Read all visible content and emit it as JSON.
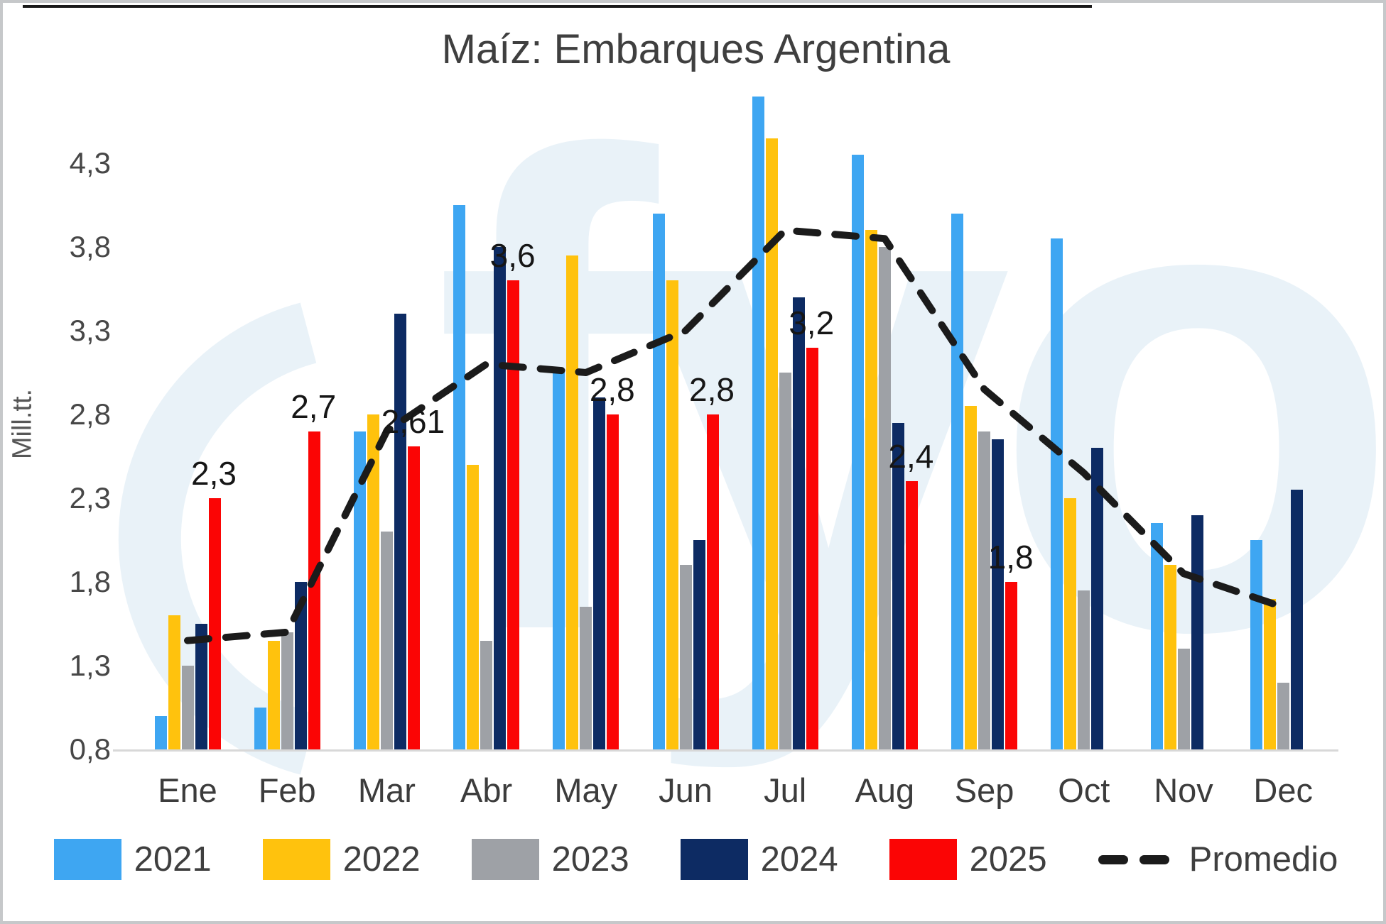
{
  "frame": {
    "border_color": "#c6c8ca",
    "top_rule_color": "#191919"
  },
  "watermark": {
    "text": "fyo",
    "color": "#e9f2f8"
  },
  "chart_data": {
    "type": "bar",
    "title": "Maíz: Embarques Argentina",
    "ylabel": "Mill.tt.",
    "xlabel": "",
    "grid": false,
    "legend_position": "bottom",
    "ylim": [
      0.8,
      4.85
    ],
    "categories": [
      "Ene",
      "Feb",
      "Mar",
      "Abr",
      "May",
      "Jun",
      "Jul",
      "Aug",
      "Sep",
      "Oct",
      "Nov",
      "Dec"
    ],
    "y_ticks": [
      {
        "v": 0.8,
        "label": "0,8"
      },
      {
        "v": 1.3,
        "label": "1,3"
      },
      {
        "v": 1.8,
        "label": "1,8"
      },
      {
        "v": 2.3,
        "label": "2,3"
      },
      {
        "v": 2.8,
        "label": "2,8"
      },
      {
        "v": 3.3,
        "label": "3,3"
      },
      {
        "v": 3.8,
        "label": "3,8"
      },
      {
        "v": 4.3,
        "label": "4,3"
      }
    ],
    "series": [
      {
        "name": "2021",
        "color": "#3ea6f2",
        "values": [
          1.0,
          1.05,
          2.7,
          4.05,
          3.05,
          4.0,
          4.7,
          4.35,
          4.0,
          3.85,
          2.15,
          2.05
        ]
      },
      {
        "name": "2022",
        "color": "#ffc20d",
        "values": [
          1.6,
          1.45,
          2.8,
          2.5,
          3.75,
          3.6,
          4.45,
          3.9,
          2.85,
          2.3,
          1.9,
          1.7
        ]
      },
      {
        "name": "2023",
        "color": "#9ea1a6",
        "values": [
          1.3,
          1.5,
          2.1,
          1.45,
          1.65,
          1.9,
          3.05,
          3.8,
          2.7,
          1.75,
          1.4,
          1.2
        ]
      },
      {
        "name": "2024",
        "color": "#0d2b63",
        "values": [
          1.55,
          1.8,
          3.4,
          3.8,
          2.9,
          2.05,
          3.5,
          2.75,
          2.65,
          2.6,
          2.2,
          2.35
        ]
      },
      {
        "name": "2025",
        "color": "#fb0505",
        "values": [
          2.3,
          2.7,
          2.61,
          3.6,
          2.8,
          2.8,
          3.2,
          2.4,
          1.8,
          null,
          null,
          null
        ],
        "data_labels": [
          "2,3",
          "2,7",
          "2,61",
          "3,6",
          "2,8",
          "2,8",
          "3,2",
          "2,4",
          "1,8",
          null,
          null,
          null
        ]
      }
    ],
    "line_series": {
      "name": "Promedio",
      "color": "#1b1b1b",
      "style": "dashed",
      "values": [
        1.45,
        1.5,
        2.7,
        3.1,
        3.05,
        3.3,
        3.9,
        3.85,
        2.95,
        2.45,
        1.85,
        1.65
      ]
    }
  }
}
